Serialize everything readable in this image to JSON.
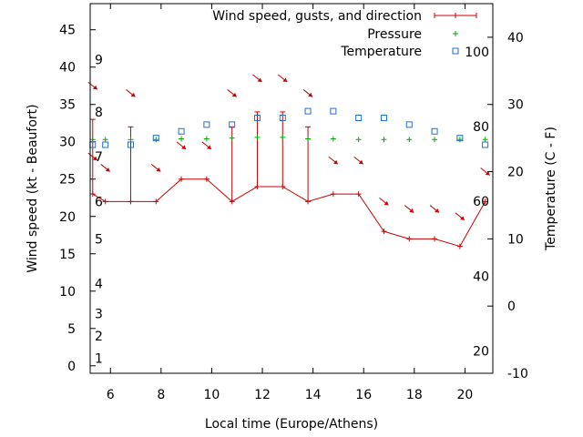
{
  "chart_data": {
    "type": "line",
    "xlabel": "Local time (Europe/Athens)",
    "ylabel": "Wind speed (kt - Beaufort)",
    "y2label": "Temperature (C - F)",
    "xlim": [
      5.2,
      21.1
    ],
    "ylim": [
      -1,
      48.5
    ],
    "y2lim": [
      -10,
      45
    ],
    "x_ticks": [
      6,
      8,
      10,
      12,
      14,
      16,
      18,
      20
    ],
    "y_ticks": [
      0,
      5,
      10,
      15,
      20,
      25,
      30,
      35,
      40,
      45
    ],
    "y2_ticks": [
      -10,
      0,
      10,
      20,
      30,
      40
    ],
    "beaufort_labels": [
      {
        "label": "1",
        "kt": 1
      },
      {
        "label": "2",
        "kt": 4
      },
      {
        "label": "3",
        "kt": 7
      },
      {
        "label": "4",
        "kt": 11
      },
      {
        "label": "5",
        "kt": 17
      },
      {
        "label": "6",
        "kt": 22
      },
      {
        "label": "7",
        "kt": 28
      },
      {
        "label": "8",
        "kt": 34
      },
      {
        "label": "9",
        "kt": 41
      }
    ],
    "fahrenheit_labels": [
      {
        "label": "20",
        "celsius": -6.7
      },
      {
        "label": "40",
        "celsius": 4.4
      },
      {
        "label": "60",
        "celsius": 15.6
      },
      {
        "label": "80",
        "celsius": 26.7
      },
      {
        "label": "100",
        "celsius": 37.8
      }
    ],
    "legend": {
      "position": "top-right",
      "wind": "Wind speed, gusts, and direction",
      "pressure": "Pressure",
      "temperature": "Temperature"
    },
    "series": [
      {
        "name": "Wind speed, gusts, and direction",
        "color": "#cc0000",
        "x": [
          5.3,
          5.8,
          6.8,
          7.8,
          8.8,
          9.8,
          10.8,
          11.8,
          12.8,
          13.8,
          14.8,
          15.8,
          16.8,
          17.8,
          18.8,
          19.8,
          20.8
        ],
        "speed": [
          23,
          22,
          22,
          22,
          25,
          25,
          22,
          24,
          24,
          22,
          23,
          23,
          18,
          17,
          17,
          16,
          22
        ],
        "gust": [
          33,
          null,
          32,
          null,
          null,
          null,
          32,
          34,
          34,
          32,
          null,
          null,
          null,
          null,
          null,
          null,
          null
        ],
        "direction_arrows": [
          {
            "x": 5.3,
            "kt": 37.5
          },
          {
            "x": 5.3,
            "kt": 28.0
          },
          {
            "x": 5.8,
            "kt": 26.5
          },
          {
            "x": 6.8,
            "kt": 36.5
          },
          {
            "x": 7.8,
            "kt": 26.5
          },
          {
            "x": 8.8,
            "kt": 29.5
          },
          {
            "x": 9.8,
            "kt": 29.5
          },
          {
            "x": 10.8,
            "kt": 36.5
          },
          {
            "x": 11.8,
            "kt": 38.5
          },
          {
            "x": 12.8,
            "kt": 38.5
          },
          {
            "x": 13.8,
            "kt": 36.5
          },
          {
            "x": 14.8,
            "kt": 27.5
          },
          {
            "x": 15.8,
            "kt": 27.5
          },
          {
            "x": 16.8,
            "kt": 22.0
          },
          {
            "x": 17.8,
            "kt": 21.0
          },
          {
            "x": 18.8,
            "kt": 21.0
          },
          {
            "x": 19.8,
            "kt": 20.0
          },
          {
            "x": 20.8,
            "kt": 26.0
          }
        ]
      },
      {
        "name": "Pressure",
        "color": "#00aa00",
        "x": [
          5.3,
          5.8,
          6.8,
          7.8,
          8.8,
          9.8,
          10.8,
          11.8,
          12.8,
          13.8,
          14.8,
          15.8,
          16.8,
          17.8,
          18.8,
          19.8,
          20.8
        ],
        "kt": [
          30.3,
          30.3,
          30.3,
          30.3,
          30.4,
          30.4,
          30.5,
          30.6,
          30.6,
          30.4,
          30.4,
          30.3,
          30.3,
          30.3,
          30.3,
          30.3,
          30.3
        ]
      },
      {
        "name": "Temperature",
        "color": "#1f6fd6",
        "x": [
          5.3,
          5.8,
          6.8,
          7.8,
          8.8,
          9.8,
          10.8,
          11.8,
          12.8,
          13.8,
          14.8,
          15.8,
          16.8,
          17.8,
          18.8,
          19.8,
          20.8
        ],
        "celsius": [
          24,
          24,
          24,
          25,
          26,
          27,
          27,
          28,
          28,
          29,
          29,
          28,
          28,
          27,
          26,
          25,
          24
        ]
      }
    ]
  }
}
